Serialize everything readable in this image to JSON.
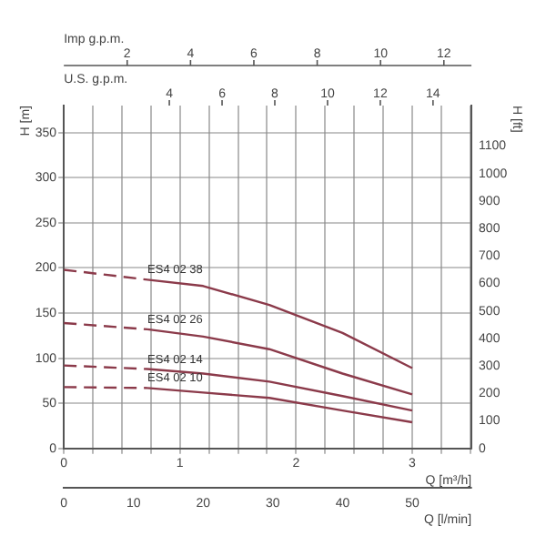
{
  "chart_data": {
    "type": "line",
    "xlabel": "Q [l/min]",
    "x2label": "Q [m³/h]",
    "annotations": [
      "U.S. g.p.m.",
      "4",
      "6",
      "8",
      "10",
      "12",
      "14",
      "Imp g.p.m.",
      "2",
      "4",
      "6",
      "8",
      "10",
      "12"
    ],
    "ylabel": "H [m]",
    "y2label": "H [ft]",
    "xlim": [
      0,
      58.5
    ],
    "xticks": [
      0,
      10,
      20,
      30,
      40,
      50
    ],
    "x2lim": [
      0,
      3.51
    ],
    "x2ticks": [
      0,
      {
        "value": 0.25,
        "label": null
      },
      {
        "value": 0.5,
        "label": null
      },
      {
        "value": 0.75,
        "label": null
      },
      1,
      {
        "value": 1.25,
        "label": null
      },
      {
        "value": 1.5,
        "label": null
      },
      {
        "value": 1.75,
        "label": null
      },
      2,
      {
        "value": 2.25,
        "label": null
      },
      {
        "value": 2.5,
        "label": null
      },
      {
        "value": 2.75,
        "label": null
      },
      3,
      {
        "value": 3.25,
        "label": null
      },
      {
        "value": 3.5,
        "label": null
      }
    ],
    "ylim": [
      0,
      380
    ],
    "yticks": [
      0,
      50,
      100,
      150,
      200,
      250,
      300,
      350
    ],
    "y2lim": [
      0,
      1247
    ],
    "y2ticks": [
      0,
      100,
      200,
      300,
      400,
      500,
      600,
      700,
      800,
      900,
      1000,
      1100
    ],
    "grid": true,
    "legend": false,
    "marker": "none",
    "series": [
      {
        "color": "#8b3a4a",
        "line_style": "dashed",
        "x": [
          0,
          12
        ],
        "values": [
          198,
          187
        ]
      },
      {
        "name": "ES4 02 38",
        "color": "#8b3a4a",
        "line_style": "solid",
        "x": [
          12,
          20,
          29.5,
          40,
          50
        ],
        "values": [
          187,
          180,
          159,
          128,
          89
        ]
      },
      {
        "color": "#8b3a4a",
        "line_style": "dashed",
        "x": [
          0,
          12
        ],
        "values": [
          139,
          132
        ]
      },
      {
        "name": "ES4 02 26",
        "color": "#8b3a4a",
        "line_style": "solid",
        "x": [
          12,
          20,
          29.5,
          40,
          50
        ],
        "values": [
          132,
          124,
          110,
          83,
          60
        ]
      },
      {
        "color": "#8b3a4a",
        "line_style": "dashed",
        "x": [
          0,
          12
        ],
        "values": [
          92,
          88
        ]
      },
      {
        "name": "ES4 02 14",
        "color": "#8b3a4a",
        "line_style": "solid",
        "x": [
          12,
          20,
          29.5,
          40,
          50
        ],
        "values": [
          88,
          83,
          74,
          58,
          42
        ]
      },
      {
        "color": "#8b3a4a",
        "line_style": "dashed",
        "x": [
          0,
          12
        ],
        "values": [
          68,
          67
        ]
      },
      {
        "name": "ES4 02 10",
        "color": "#8b3a4a",
        "line_style": "solid",
        "x": [
          12,
          20,
          29.5,
          40,
          50
        ],
        "values": [
          67,
          62,
          56,
          42,
          29
        ]
      }
    ]
  }
}
